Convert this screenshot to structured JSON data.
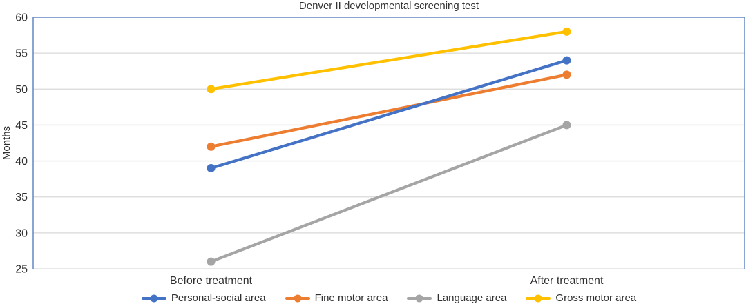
{
  "chart_data": {
    "type": "line",
    "title": "Denver II developmental screening test",
    "xlabel": "",
    "ylabel": "Months",
    "categories": [
      "Before treatment",
      "After treatment"
    ],
    "series": [
      {
        "name": "Personal-social area",
        "values": [
          39,
          54
        ],
        "color": "#4472C4"
      },
      {
        "name": "Fine motor area",
        "values": [
          42,
          52
        ],
        "color": "#ED7D31"
      },
      {
        "name": "Language area",
        "values": [
          26,
          45
        ],
        "color": "#A5A5A5"
      },
      {
        "name": "Gross motor area",
        "values": [
          50,
          58
        ],
        "color": "#FFC000"
      }
    ],
    "draw_order": [
      1,
      2,
      0,
      3
    ],
    "ylim": [
      25,
      60
    ],
    "yticks": [
      60,
      55,
      50,
      45,
      40,
      35,
      30,
      25
    ],
    "grid": true,
    "legend_position": "bottom",
    "colors": {
      "gridline": "#D9D9D9",
      "plot_border": "#6487C3",
      "text": "#303030"
    }
  }
}
